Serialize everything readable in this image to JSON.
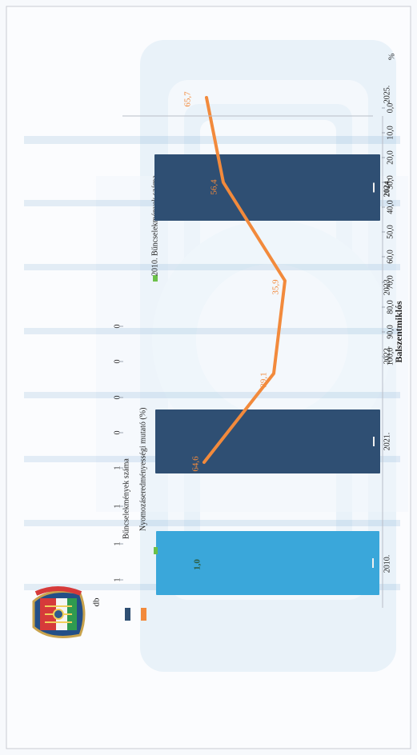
{
  "page": {
    "title_partial": "Balszentmiklós",
    "left_axis_unit": "db",
    "right_axis_unit": "%"
  },
  "colors": {
    "bar_main": "#2f4f73",
    "bar_2010": "#3aa7da",
    "line": "#f28a3c",
    "marker_2010": "#6cc04a",
    "axis_text": "#222222"
  },
  "chart_data": {
    "type": "bar",
    "categories": [
      "2010.",
      "2021.",
      "2022.",
      "2023.",
      "2024.",
      "2025."
    ],
    "left_ticks": [
      "1",
      "1",
      "1",
      "1",
      "0",
      "0",
      "0",
      "0"
    ],
    "right_ticks": [
      "100,0",
      "90,0",
      "80,0",
      "70,0",
      "60,0",
      "50,0",
      "40,0",
      "30,0",
      "20,0",
      "10,0",
      "0,0"
    ],
    "ylim_right": [
      0,
      100
    ],
    "series": [
      {
        "name": "Bűncselekmények száma",
        "values": [
          null,
          1,
          null,
          null,
          1,
          null
        ],
        "bar_labels": [
          "",
          "1",
          "",
          "",
          "1",
          ""
        ]
      },
      {
        "name": "2010. Bűncselekmények száma",
        "values": [
          1,
          null,
          null,
          null,
          null,
          null
        ],
        "bar_labels": [
          "1",
          "",
          "",
          "",
          "",
          ""
        ],
        "value_label": "1,0"
      },
      {
        "name": "Nyomozáseredményességi mutató (%)",
        "values": [
          null,
          64.6,
          39.1,
          35.9,
          56.4,
          65.7
        ],
        "labels": [
          "",
          "64,6",
          "39,1",
          "35,9",
          "56,4",
          "65,7"
        ]
      }
    ],
    "legend": [
      {
        "key": "bars",
        "label": "Bűncselekmények száma"
      },
      {
        "key": "line",
        "label": "Nyomozáseredményességi mutató (%)"
      },
      {
        "key": "bar2010",
        "label": "2010. Bűncselekmények száma"
      }
    ],
    "grid": false,
    "legend_position": "top"
  }
}
